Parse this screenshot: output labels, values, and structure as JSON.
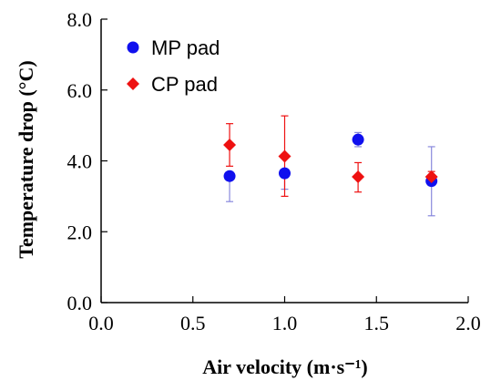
{
  "chart_data": {
    "type": "scatter",
    "xlabel": "Air velocity (m·s⁻¹)",
    "ylabel": "Temperature drop (°C)",
    "xlim": [
      0.0,
      2.0
    ],
    "ylim": [
      0.0,
      8.0
    ],
    "x_ticks": [
      "0.0",
      "0.5",
      "1.0",
      "1.5",
      "2.0"
    ],
    "y_ticks": [
      "0.0",
      "2.0",
      "4.0",
      "6.0",
      "8.0"
    ],
    "grid": false,
    "legend_position": "top-left",
    "series": [
      {
        "name": "MP pad",
        "marker": "circle",
        "color": "#1010ee",
        "error_color": "#8888dd",
        "points": [
          {
            "x": 0.7,
            "y": 3.57,
            "err_low": 2.85,
            "err_high": 3.57
          },
          {
            "x": 1.0,
            "y": 3.65,
            "err_low": 3.2,
            "err_high": 3.65
          },
          {
            "x": 1.4,
            "y": 4.6,
            "err_low": 4.4,
            "err_high": 4.8
          },
          {
            "x": 1.8,
            "y": 3.43,
            "err_low": 2.45,
            "err_high": 4.4
          }
        ]
      },
      {
        "name": "CP pad",
        "marker": "diamond",
        "color": "#ee1111",
        "error_color": "#ee1111",
        "points": [
          {
            "x": 0.7,
            "y": 4.45,
            "err_low": 3.85,
            "err_high": 5.05
          },
          {
            "x": 1.0,
            "y": 4.13,
            "err_low": 3.0,
            "err_high": 5.27
          },
          {
            "x": 1.4,
            "y": 3.55,
            "err_low": 3.12,
            "err_high": 3.95
          },
          {
            "x": 1.8,
            "y": 3.55,
            "err_low": 3.4,
            "err_high": 3.7
          }
        ]
      }
    ]
  }
}
